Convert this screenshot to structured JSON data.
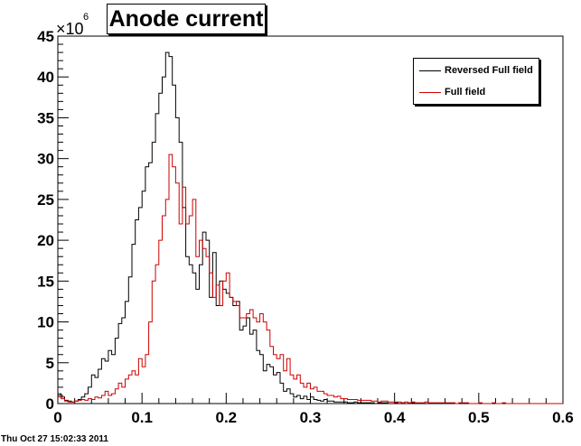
{
  "title": "Anode current",
  "timestamp": "Thu Oct 27 15:02:33 2011",
  "chart_data": {
    "type": "histogram",
    "title": "Anode current",
    "xlim": [
      0,
      0.6
    ],
    "ylim": [
      0,
      45
    ],
    "y_multiplier_label": "×10",
    "y_multiplier_exp": "6",
    "x_ticks": [
      0,
      0.1,
      0.2,
      0.3,
      0.4,
      0.5,
      0.6
    ],
    "x_tick_labels": [
      "0",
      "0.1",
      "0.2",
      "0.3",
      "0.4",
      "0.5",
      "0.6"
    ],
    "y_ticks": [
      0,
      5,
      10,
      15,
      20,
      25,
      30,
      35,
      40,
      45
    ],
    "y_tick_labels": [
      "0",
      "5",
      "10",
      "15",
      "20",
      "25",
      "30",
      "35",
      "40",
      "45"
    ],
    "bin_width": 0.004,
    "legend_position": "top-right",
    "series": [
      {
        "name": "Reversed Full field",
        "color": "#000000",
        "values": [
          1.2,
          0.8,
          0.4,
          0.3,
          0.2,
          0.3,
          0.5,
          0.8,
          1.2,
          2.0,
          3.5,
          3.2,
          4.2,
          5.5,
          5.2,
          6.5,
          6.0,
          8.0,
          9.8,
          10.5,
          12.5,
          15.5,
          19.5,
          22.5,
          24.0,
          26.0,
          29.0,
          29.5,
          32.0,
          35.5,
          38.0,
          40.0,
          43.0,
          42.5,
          39.0,
          35.0,
          32.0,
          24.0,
          18.0,
          17.0,
          16.0,
          14.0,
          17.0,
          21.0,
          20.0,
          13.0,
          18.5,
          12.0,
          15.0,
          14.0,
          13.5,
          13.0,
          12.0,
          12.5,
          9.0,
          9.5,
          10.5,
          8.5,
          9.0,
          6.5,
          6.0,
          4.0,
          4.8,
          4.5,
          3.5,
          3.8,
          2.5,
          1.5,
          1.8,
          1.2,
          0.8,
          1.0,
          0.6,
          0.9,
          0.5,
          0.8,
          0.5,
          0.4,
          0.3,
          0.5,
          0.3,
          0.3,
          0.2,
          0.2,
          0.2,
          0.2,
          0.1,
          0.1,
          0.2,
          0.1,
          0.1,
          0.1,
          0.1,
          0.1,
          0.0,
          0.1,
          0.1,
          0.1,
          0.0,
          0.0,
          0.1,
          0.0,
          0.0,
          0.0,
          0.0,
          0.1,
          0.0,
          0.0,
          0.0,
          0.0,
          0.0,
          0.0,
          0.0,
          0.0,
          0.0,
          0.0,
          0.0,
          0.0,
          0.0,
          0.0,
          0.0,
          0.0,
          0.0,
          0.0,
          0.0,
          0.0,
          0.0,
          0.0,
          0.0,
          0.0,
          0.0,
          0.0,
          0.0,
          0.0,
          0.0,
          0.0,
          0.0,
          0.0,
          0.0,
          0.0,
          0.0,
          0.0,
          0.0,
          0.0,
          0.0,
          0.0,
          0.0,
          0.0,
          0.0,
          0.0
        ]
      },
      {
        "name": "Full field",
        "color": "#cc0000",
        "values": [
          0.8,
          0.6,
          0.3,
          0.2,
          0.2,
          0.3,
          0.4,
          0.5,
          0.4,
          0.6,
          0.5,
          0.8,
          0.7,
          1.0,
          1.5,
          1.0,
          1.2,
          1.8,
          2.5,
          2.0,
          3.0,
          3.5,
          4.0,
          3.5,
          5.5,
          4.5,
          6.0,
          10.0,
          15.0,
          17.0,
          20.0,
          23.0,
          25.0,
          30.5,
          29.0,
          27.0,
          22.0,
          26.5,
          22.0,
          23.0,
          25.0,
          18.0,
          20.0,
          19.0,
          18.0,
          16.0,
          13.0,
          14.5,
          12.0,
          15.0,
          16.0,
          13.0,
          12.5,
          12.0,
          10.5,
          10.5,
          11.0,
          11.5,
          10.5,
          10.0,
          11.0,
          10.0,
          9.0,
          7.0,
          6.0,
          5.5,
          6.0,
          4.0,
          5.5,
          3.5,
          3.0,
          3.5,
          2.5,
          2.0,
          2.5,
          1.8,
          2.0,
          1.5,
          1.5,
          1.2,
          1.0,
          1.0,
          0.8,
          0.9,
          0.6,
          0.6,
          0.5,
          0.5,
          0.5,
          0.4,
          0.4,
          0.4,
          0.4,
          0.3,
          0.3,
          0.2,
          0.3,
          0.3,
          0.2,
          0.2,
          0.2,
          0.2,
          0.1,
          0.2,
          0.1,
          0.2,
          0.1,
          0.1,
          0.1,
          0.2,
          0.1,
          0.1,
          0.1,
          0.1,
          0.1,
          0.1,
          0.1,
          0.1,
          0.0,
          0.1,
          0.1,
          0.1,
          0.0,
          0.0,
          0.0,
          0.1,
          0.0,
          0.0,
          0.0,
          0.1,
          0.0,
          0.0,
          0.1,
          0.0,
          0.0,
          0.0,
          0.0,
          0.0,
          0.0,
          0.0,
          0.0,
          0.0,
          0.0,
          0.0,
          0.0,
          0.0,
          0.0,
          0.0,
          0.0,
          0.0
        ]
      }
    ]
  }
}
